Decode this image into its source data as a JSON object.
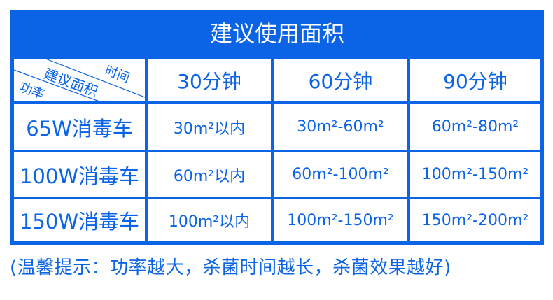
{
  "title": "建议使用面积",
  "corner": {
    "time": "时间",
    "area": "建议面积",
    "power": "功率"
  },
  "columns": [
    "30分钟",
    "60分钟",
    "90分钟"
  ],
  "rows": [
    {
      "label": "65W消毒车",
      "values": [
        "30m²以内",
        "30m²-60m²",
        "60m²-80m²"
      ]
    },
    {
      "label": "100W消毒车",
      "values": [
        "60m²以内",
        "60m²-100m²",
        "100m²-150m²"
      ]
    },
    {
      "label": "150W消毒车",
      "values": [
        "100m²以内",
        "100m²-150m²",
        "150m²-200m²"
      ]
    }
  ],
  "footer": "(温馨提示：功率越大，杀菌时间越长，杀菌效果越好)",
  "colors": {
    "accent": "#0b63e5"
  }
}
